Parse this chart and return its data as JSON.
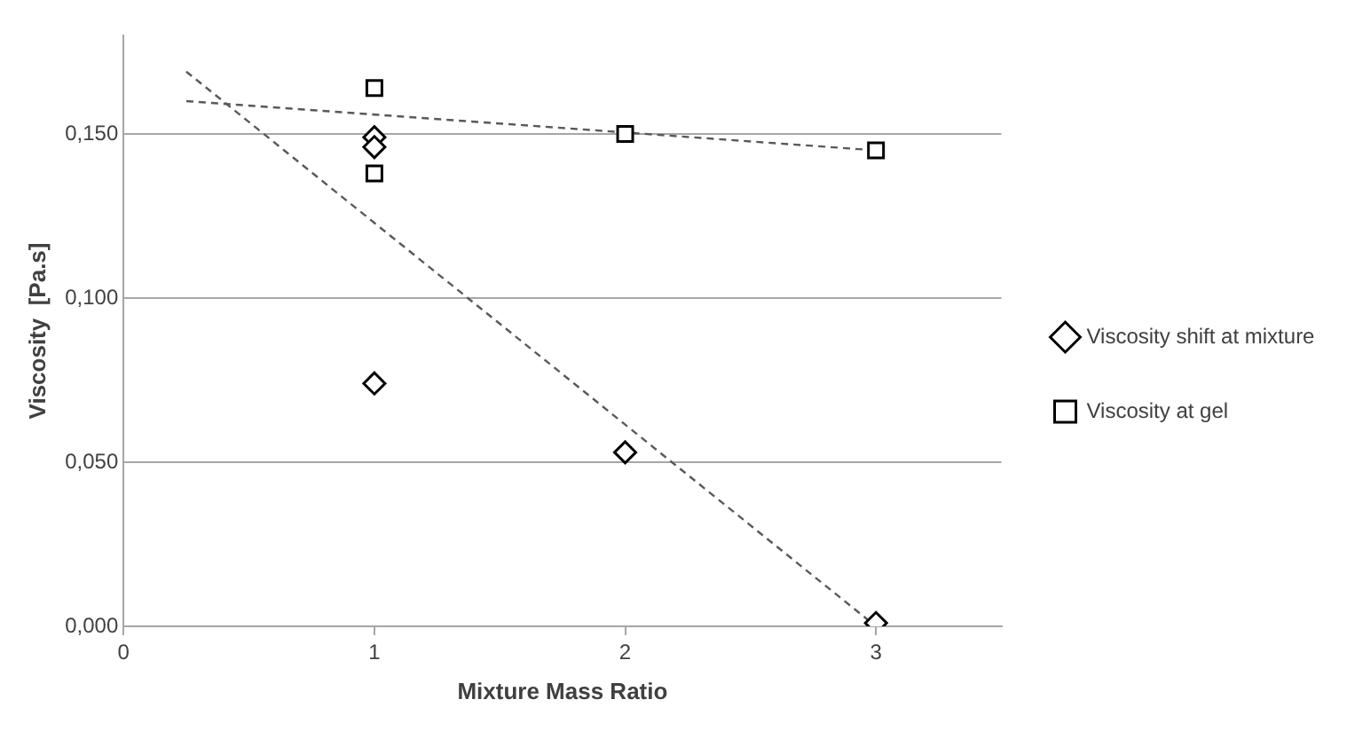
{
  "chart_data": {
    "type": "scatter",
    "xlabel": "Mixture Mass Ratio",
    "ylabel": "Viscosity  [Pa.s]",
    "xlim": [
      0,
      3.5
    ],
    "xticks": [
      0,
      1,
      2,
      3
    ],
    "ylim": [
      0,
      0.18
    ],
    "yticks": [
      {
        "value": 0,
        "label": "0,000"
      },
      {
        "value": 0.05,
        "label": "0,050"
      },
      {
        "value": 0.1,
        "label": "0,100"
      },
      {
        "value": 0.15,
        "label": "0,150"
      }
    ],
    "grid": "y",
    "legend": "right",
    "series": [
      {
        "name": "Viscosity shift at mixture",
        "color": "#000000",
        "marker": "diamond",
        "x": [
          1,
          1,
          1,
          2,
          3
        ],
        "values": [
          0.149,
          0.146,
          0.074,
          0.053,
          0.001
        ]
      },
      {
        "name": "Viscosity at gel",
        "color": "#000000",
        "marker": "square",
        "x": [
          1,
          1,
          2,
          3
        ],
        "values": [
          0.164,
          0.138,
          0.15,
          0.145
        ]
      },
      {
        "type": "line",
        "color": "#595959",
        "marker": "none",
        "line_style": "dashed",
        "x": [
          0.25,
          3
        ],
        "values": [
          0.169,
          0.0
        ]
      },
      {
        "type": "line",
        "color": "#595959",
        "marker": "none",
        "line_style": "dashed",
        "x": [
          0.25,
          3
        ],
        "values": [
          0.16,
          0.145
        ]
      }
    ]
  }
}
